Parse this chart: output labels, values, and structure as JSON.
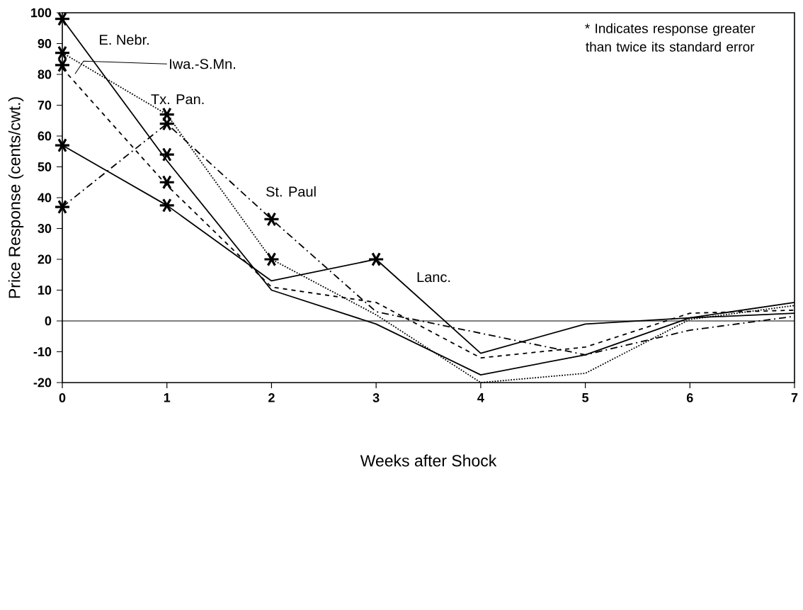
{
  "chart_data": {
    "type": "line",
    "xlabel": "Weeks after Shock",
    "ylabel": "Price Response (cents/cwt.)",
    "x": [
      0,
      1,
      2,
      3,
      4,
      5,
      6,
      7
    ],
    "series": [
      {
        "name": "E. Nebr.",
        "color": "#000000",
        "line_style": "solid",
        "values": [
          98,
          52,
          10,
          -1,
          -17.5,
          -11,
          1,
          6
        ]
      },
      {
        "name": "Iwa.-S.Mn.",
        "color": "#000000",
        "line_style": "dashed",
        "values": [
          82,
          44,
          11,
          6,
          -12,
          -8.5,
          2.5,
          3.5
        ]
      },
      {
        "name": "Tx. Pan.",
        "color": "#000000",
        "line_style": "dotted",
        "values": [
          87,
          67,
          20,
          2,
          -20,
          -17,
          0.5,
          5
        ]
      },
      {
        "name": "St. Paul",
        "color": "#000000",
        "line_style": "dashdot",
        "values": [
          37,
          64,
          33,
          3,
          -4,
          -11,
          -3,
          1.5
        ]
      },
      {
        "name": "Lanc.",
        "color": "#000000",
        "line_style": "solid",
        "values": [
          57,
          37.5,
          13,
          20,
          -10.5,
          -1,
          1,
          2.5
        ]
      },
      {
        "type": "scatter",
        "color": "#000000",
        "marker": "cross",
        "x": [
          0,
          0,
          0,
          0,
          0,
          1,
          1,
          1,
          1,
          1,
          2,
          2,
          3
        ],
        "values": [
          98,
          87,
          83,
          57,
          37,
          67,
          64,
          54,
          45,
          37.5,
          33,
          20,
          20
        ]
      }
    ],
    "annotations": [
      "* Indicates response greater than twice its standard error"
    ],
    "ref_lines": [
      {
        "axis": "y",
        "value": 0,
        "color": "#000000"
      }
    ],
    "xlim": [
      0,
      7
    ],
    "ylim": [
      -20,
      100
    ],
    "xticks": [
      0,
      1,
      2,
      3,
      4,
      5,
      6,
      7
    ],
    "yticks": [
      -20,
      -10,
      0,
      10,
      20,
      30,
      40,
      50,
      60,
      70,
      80,
      90,
      100
    ],
    "grid": false,
    "legend": false,
    "marker": "none"
  }
}
